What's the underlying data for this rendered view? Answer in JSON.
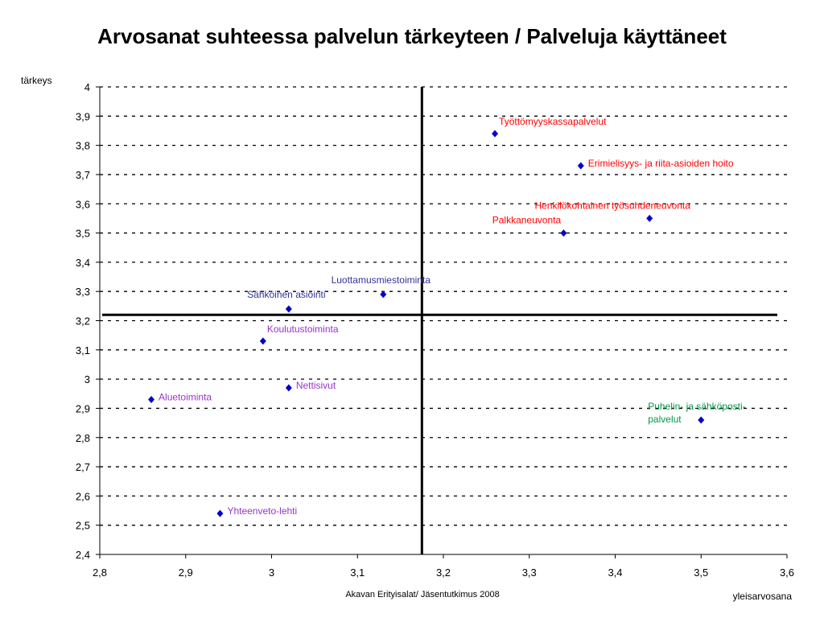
{
  "chart_data": {
    "type": "scatter",
    "title": "Arvosanat suhteessa palvelun tärkeyteen / Palveluja käyttäneet",
    "xlabel": "yleisarvosana",
    "ylabel": "tärkeys",
    "source": "Akavan Erityisalat/ Jäsentutkimus 2008",
    "xlim": [
      2.8,
      3.6
    ],
    "ylim": [
      2.4,
      4.0
    ],
    "x_ticks": [
      "2,8",
      "2,9",
      "3",
      "3,1",
      "3,2",
      "3,3",
      "3,4",
      "3,5",
      "3,6"
    ],
    "y_ticks": [
      "2,4",
      "2,5",
      "2,6",
      "2,7",
      "2,8",
      "2,9",
      "3",
      "3,1",
      "3,2",
      "3,3",
      "3,4",
      "3,5",
      "3,6",
      "3,7",
      "3,8",
      "3,9",
      "4"
    ],
    "grid": "horizontal-dashed",
    "reference_lines": {
      "x": 3.175,
      "y": 3.22
    },
    "marker_color": "#0000cc",
    "points": [
      {
        "label": "Työttömyyskassapalvelut",
        "x": 3.26,
        "y": 3.84,
        "color": "#ff0000",
        "label_pos": "right-above"
      },
      {
        "label": "Erimielisyys- ja riita-asioiden hoito",
        "x": 3.36,
        "y": 3.73,
        "color": "#ff0000",
        "label_pos": "right"
      },
      {
        "label": "Henkilökohtainen työsuhdeneuvonta",
        "x": 3.44,
        "y": 3.55,
        "color": "#ff0000",
        "label_pos": "above-left"
      },
      {
        "label": "Palkkaneuvonta",
        "x": 3.34,
        "y": 3.5,
        "color": "#ff0000",
        "label_pos": "above-left"
      },
      {
        "label": "Luottamusmiestoiminta",
        "x": 3.13,
        "y": 3.29,
        "color": "#333399",
        "label_pos": "above"
      },
      {
        "label": "Sähköinen asiointi",
        "x": 3.02,
        "y": 3.24,
        "color": "#333399",
        "label_pos": "above"
      },
      {
        "label": "Koulutustoiminta",
        "x": 2.99,
        "y": 3.13,
        "color": "#9933cc",
        "label_pos": "right-above"
      },
      {
        "label": "Nettisivut",
        "x": 3.02,
        "y": 2.97,
        "color": "#9933cc",
        "label_pos": "right"
      },
      {
        "label": "Aluetoiminta",
        "x": 2.86,
        "y": 2.93,
        "color": "#9933cc",
        "label_pos": "right"
      },
      {
        "label": "Yhteenveto-lehti",
        "x": 2.94,
        "y": 2.54,
        "color": "#9933cc",
        "label_pos": "right"
      },
      {
        "label": "Puhelin- ja sähköposti-\npalvelut",
        "x": 3.5,
        "y": 2.86,
        "color": "#009944",
        "label_pos": "above-left"
      }
    ]
  }
}
